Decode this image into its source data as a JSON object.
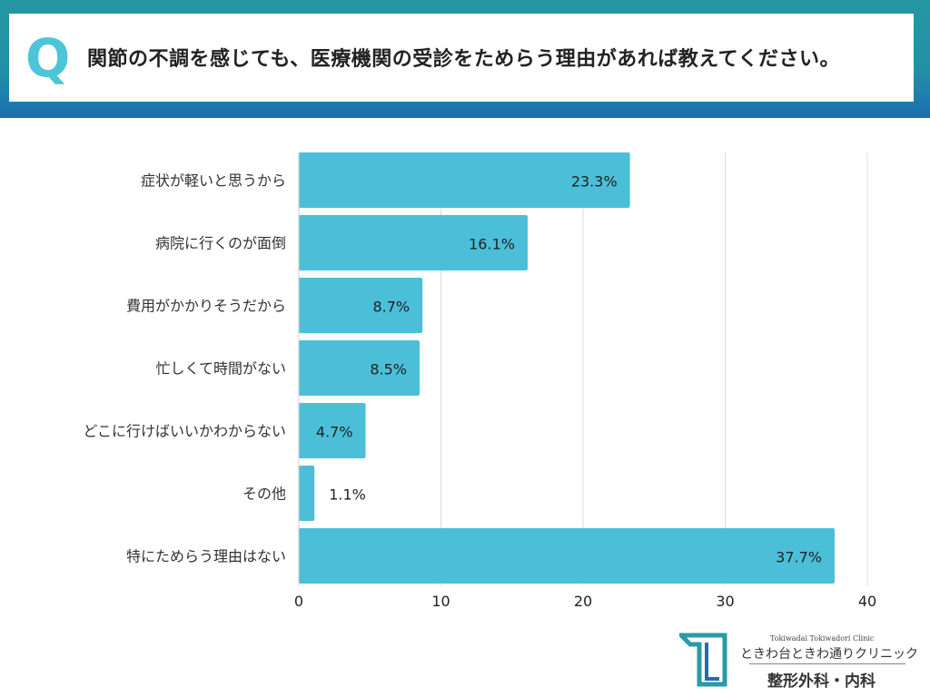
{
  "header": {
    "q_mark": "Q",
    "question": "関節の不調を感じても、医療機関の受診をためらう理由があれば教えてください。"
  },
  "chart_data": {
    "type": "bar",
    "orientation": "horizontal",
    "categories": [
      "症状が軽いと思うから",
      "病院に行くのが面倒",
      "費用がかかりそうだから",
      "忙しくて時間がない",
      "どこに行けばいいかわからない",
      "その他",
      "特にためらう理由はない"
    ],
    "values": [
      23.3,
      16.1,
      8.7,
      8.5,
      4.7,
      1.1,
      37.7
    ],
    "data_labels": [
      "23.3%",
      "16.1%",
      "8.7%",
      "8.5%",
      "4.7%",
      "1.1%",
      "37.7%"
    ],
    "xlim": [
      0,
      40
    ],
    "xticks": [
      "0",
      "10",
      "20",
      "30",
      "40"
    ],
    "grid": true,
    "bar_color": "#4bbfd8"
  },
  "logo": {
    "en": "Tokiwadai Tokiwadori Clinic",
    "jp": "ときわ台ときわ通りクリニック",
    "sub": "整形外科・内科"
  }
}
